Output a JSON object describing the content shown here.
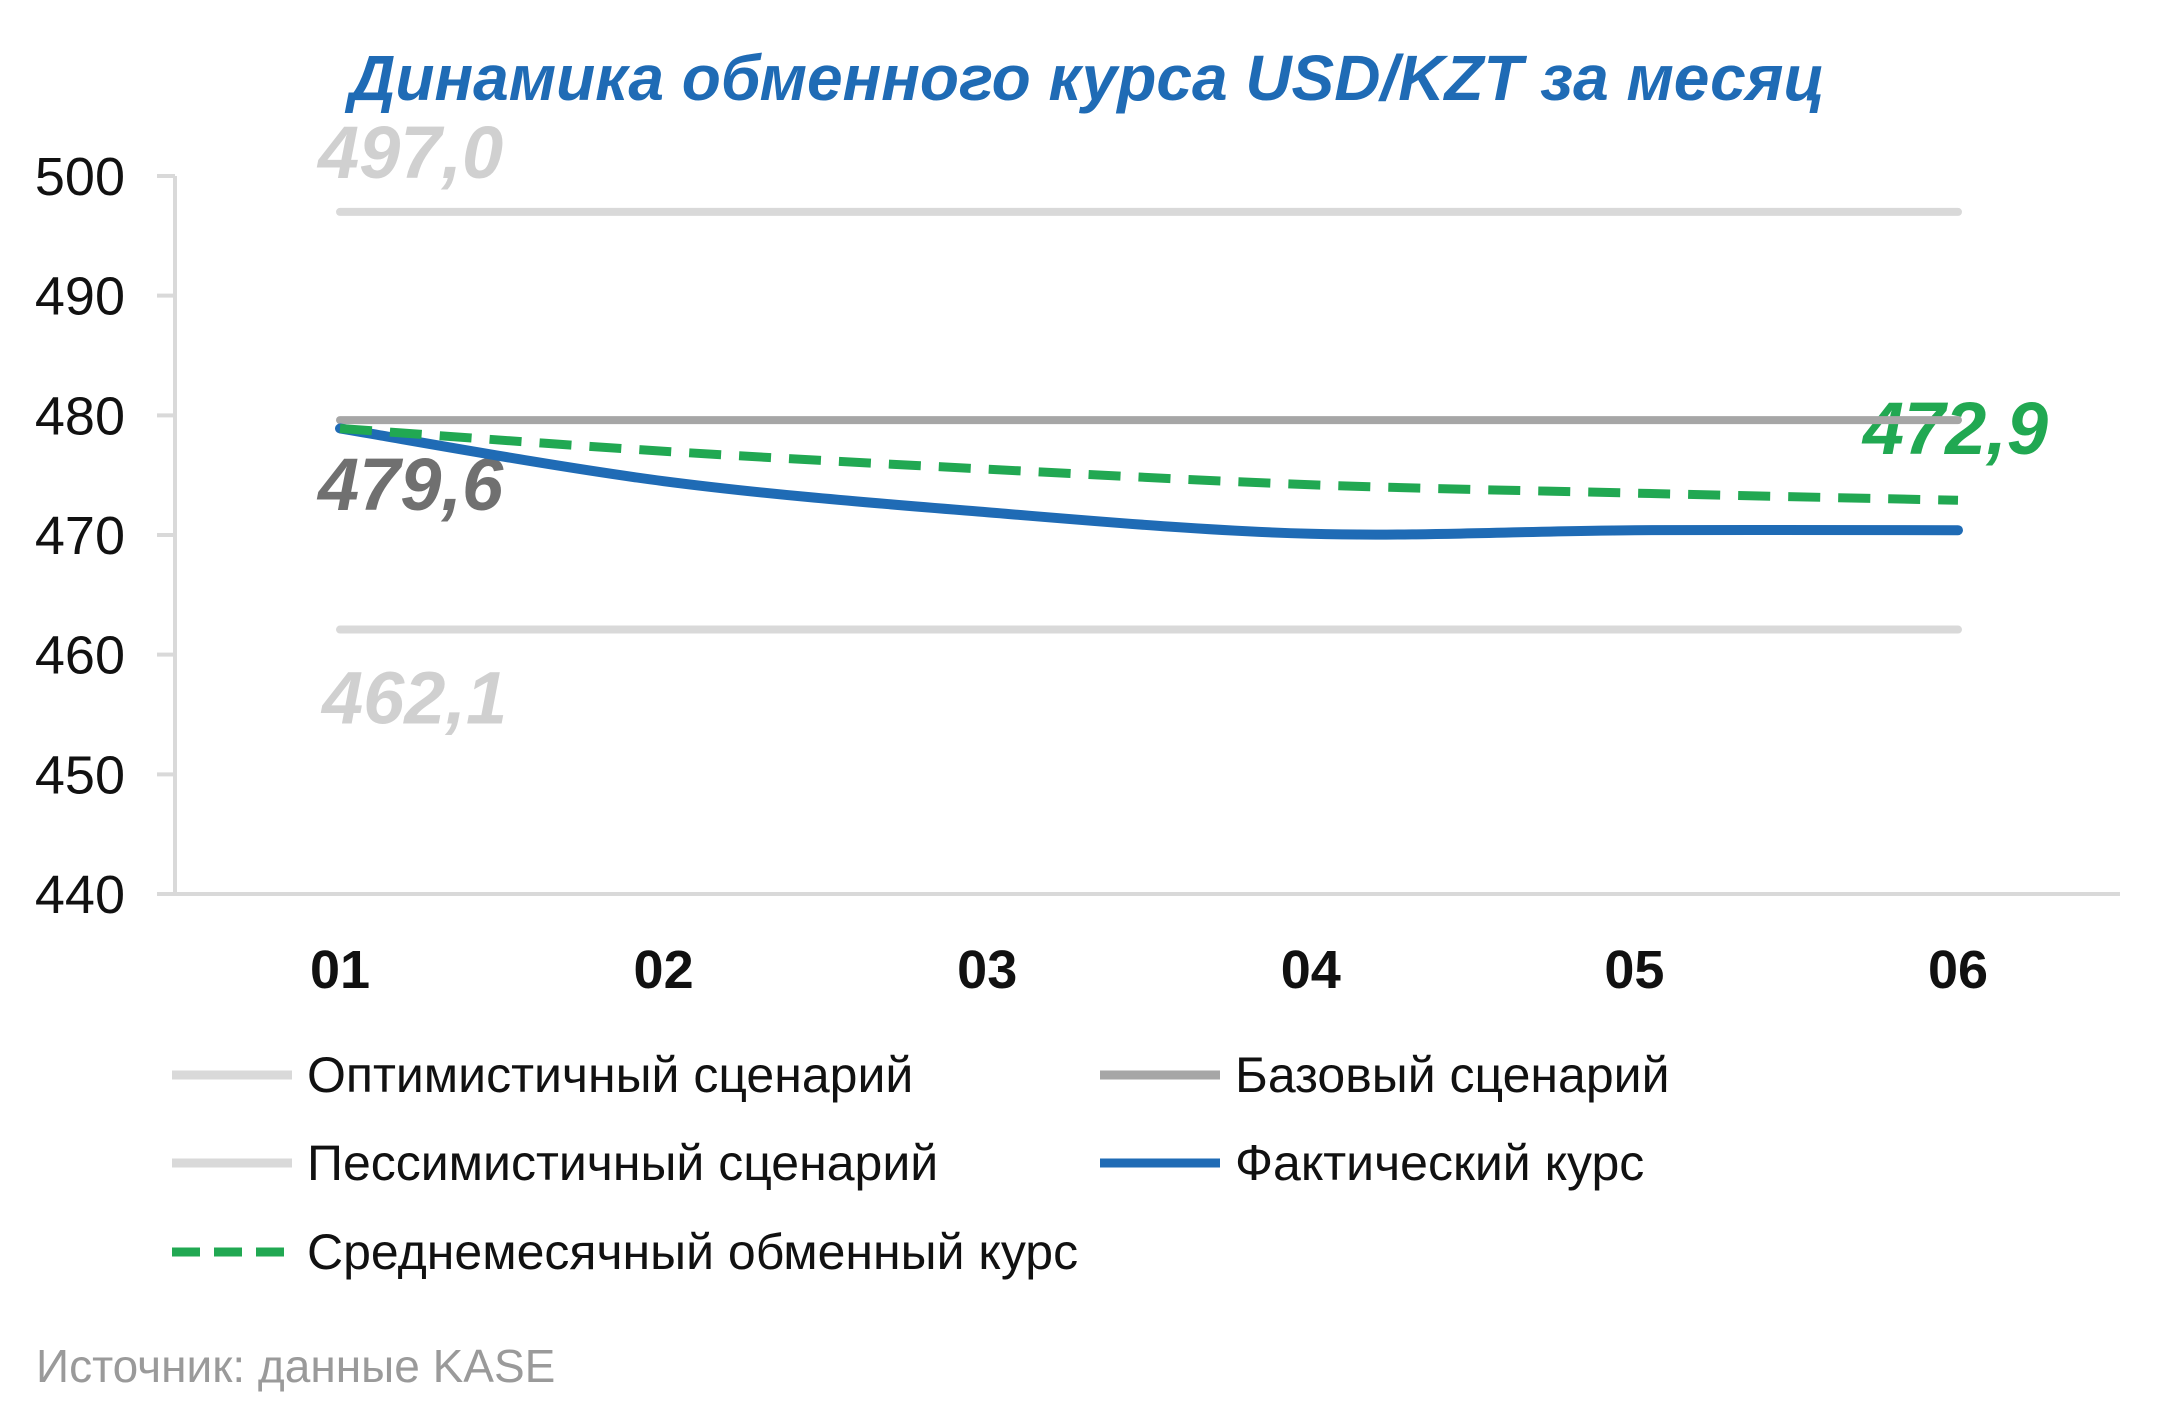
{
  "chart_data": {
    "type": "line",
    "title": "Динамика обменного курса USD/KZT за месяц",
    "categories": [
      "01",
      "02",
      "03",
      "04",
      "05",
      "06"
    ],
    "ylim": [
      440,
      500
    ],
    "yticks": [
      500,
      490,
      480,
      470,
      460,
      450,
      440
    ],
    "grid": false,
    "legend_position": "bottom",
    "series": [
      {
        "name": "Оптимистичный сценарий",
        "values": [
          497.0,
          497.0,
          497.0,
          497.0,
          497.0,
          497.0
        ],
        "color": "#d9d9d9",
        "style": "solid"
      },
      {
        "name": "Базовый сценарий",
        "values": [
          479.6,
          479.6,
          479.6,
          479.6,
          479.6,
          479.6
        ],
        "color": "#a6a6a6",
        "style": "solid"
      },
      {
        "name": "Пессимистичный сценарий",
        "values": [
          462.1,
          462.1,
          462.1,
          462.1,
          462.1,
          462.1
        ],
        "color": "#d9d9d9",
        "style": "solid"
      },
      {
        "name": "Фактический курс",
        "values": [
          478.9,
          474.5,
          471.9,
          470.1,
          470.4,
          470.4
        ],
        "color": "#1f6bb5",
        "style": "solid"
      },
      {
        "name": "Среднемесячный обменный курс",
        "values": [
          478.9,
          477.0,
          475.5,
          474.2,
          473.5,
          472.9
        ],
        "color": "#21a852",
        "style": "dashed"
      }
    ],
    "annotations": [
      {
        "text": "497,0",
        "color": "#d0d0d0"
      },
      {
        "text": "479,6",
        "color": "#707070"
      },
      {
        "text": "462,1",
        "color": "#d0d0d0"
      },
      {
        "text": "472,9",
        "color": "#21a852"
      }
    ]
  },
  "title_color": "#1f6bb5",
  "axis_color": "#d9d9d9",
  "source": "Источник: данные KASE"
}
